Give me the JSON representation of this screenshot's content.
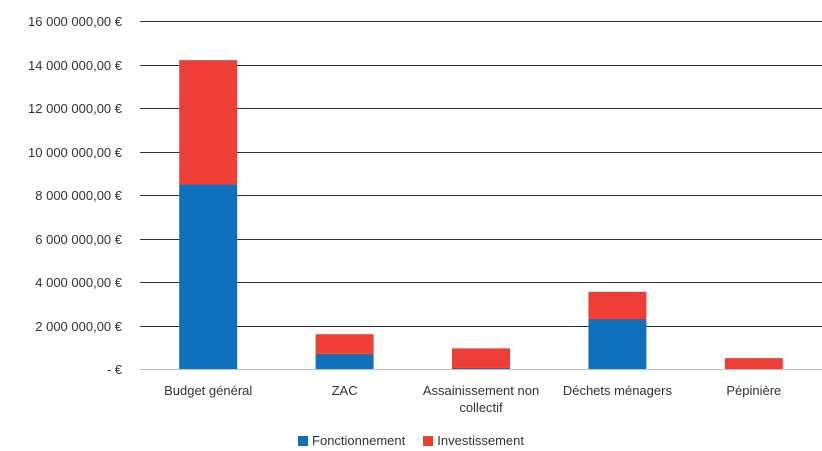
{
  "chart_data": {
    "type": "bar",
    "stacked": true,
    "categories": [
      "Budget général",
      "ZAC",
      "Assainissement non collectif",
      "Déchets ménagers",
      "Pépinière"
    ],
    "category_labels": [
      [
        "Budget général"
      ],
      [
        "ZAC"
      ],
      [
        "Assainissement non",
        "collectif"
      ],
      [
        "Déchets ménagers"
      ],
      [
        "Pépinière"
      ]
    ],
    "series": [
      {
        "name": "Fonctionnement",
        "color": "#0f70bc",
        "values": [
          8500000,
          700000,
          50000,
          2300000,
          0
        ]
      },
      {
        "name": "Investissement",
        "color": "#ef3e36",
        "values": [
          5700000,
          900000,
          900000,
          1250000,
          500000
        ]
      }
    ],
    "ylim": [
      0,
      16000000
    ],
    "yticks": [
      0,
      2000000,
      4000000,
      6000000,
      8000000,
      10000000,
      12000000,
      14000000,
      16000000
    ],
    "ytick_labels": [
      "-  €",
      "2 000 000,00 €",
      "4 000 000,00 €",
      "6 000 000,00 €",
      "8 000 000,00 €",
      "10 000 000,00 €",
      "12 000 000,00 €",
      "14 000 000,00 €",
      "16 000 000,00 €"
    ],
    "grid": true,
    "legend_position": "bottom"
  }
}
